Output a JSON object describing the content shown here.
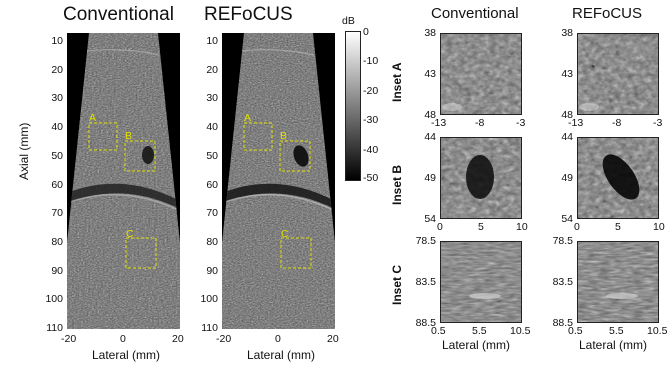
{
  "titles": {
    "left_conventional": "Conventional",
    "left_refocus": "REFoCUS",
    "right_conventional": "Conventional",
    "right_refocus": "REFoCUS"
  },
  "main_axis": {
    "ylabel": "Axial (mm)",
    "yticks": [
      "10",
      "20",
      "30",
      "40",
      "50",
      "60",
      "70",
      "80",
      "90",
      "100",
      "110"
    ],
    "xlabel": "Lateral (mm)",
    "xticks_left": [
      "-20",
      "0",
      "20"
    ],
    "xticks_mid": [
      "-20",
      "0",
      "20"
    ]
  },
  "colorbar": {
    "unit": "dB",
    "ticks": [
      "0",
      "-10",
      "-20",
      "-30",
      "-40",
      "-50"
    ]
  },
  "box_labels": [
    "A",
    "B",
    "C"
  ],
  "insets": {
    "a": {
      "label": "Inset A",
      "yticks": [
        "38",
        "43",
        "48"
      ],
      "xticks": [
        "-13",
        "-8",
        "-3"
      ]
    },
    "b": {
      "label": "Inset B",
      "yticks": [
        "44",
        "49",
        "54"
      ],
      "xticks": [
        "0",
        "5",
        "10"
      ]
    },
    "c": {
      "label": "Inset C",
      "yticks": [
        "78.5",
        "83.5",
        "88.5"
      ],
      "xticks": [
        "0.5",
        "5.5",
        "10.5"
      ],
      "xlabel": "Lateral (mm)"
    }
  },
  "colors": {
    "box": "#e2e200",
    "background": "#ffffff",
    "tissue_dark": "#1a1a1a",
    "tissue_light": "#8c8c8c"
  }
}
